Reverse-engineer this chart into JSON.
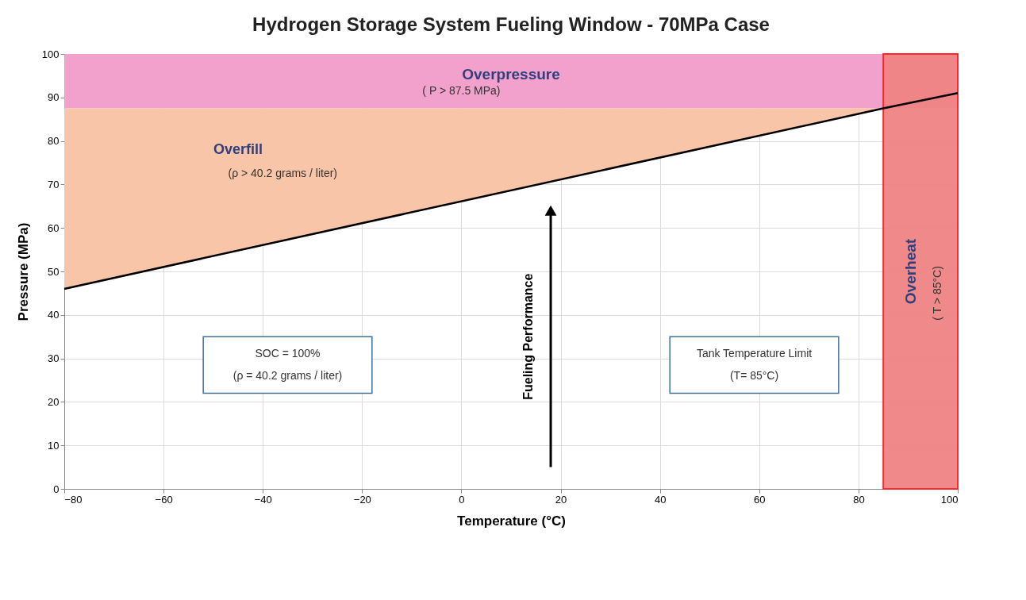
{
  "chart_data": {
    "type": "line",
    "title": "Hydrogen Storage System Fueling Window - 70MPa Case",
    "xlabel": "Temperature (°C)",
    "ylabel": "Pressure  (MPa)",
    "x": [
      -80,
      85,
      100
    ],
    "series": [
      {
        "color": "#000000",
        "values": [
          46,
          87.5,
          91
        ]
      }
    ],
    "xlim": [
      -80,
      100
    ],
    "xticks": [
      -80,
      -60,
      -40,
      -20,
      0,
      20,
      40,
      60,
      80,
      100
    ],
    "ylim": [
      0,
      100
    ],
    "yticks": [
      0,
      10,
      20,
      30,
      40,
      50,
      60,
      70,
      80,
      90,
      100
    ],
    "grid": true,
    "bands": [
      {
        "axis": "y",
        "from": 87.5,
        "to": 100,
        "label": "Overpressure",
        "color": "#f09cc8"
      },
      {
        "axis": "x",
        "from": 85,
        "to": 100,
        "label": "Overheat",
        "color": "#f08484"
      }
    ],
    "annotations": [
      "( P > 87.5 MPa)",
      "Overfill",
      "(ρ > 40.2 grams / liter)",
      "SOC = 100%",
      "(ρ = 40.2 grams / liter)",
      "Fueling Performance",
      "Tank Temperature Limit",
      "(T= 85°C)",
      "( T > 85°C)"
    ]
  }
}
